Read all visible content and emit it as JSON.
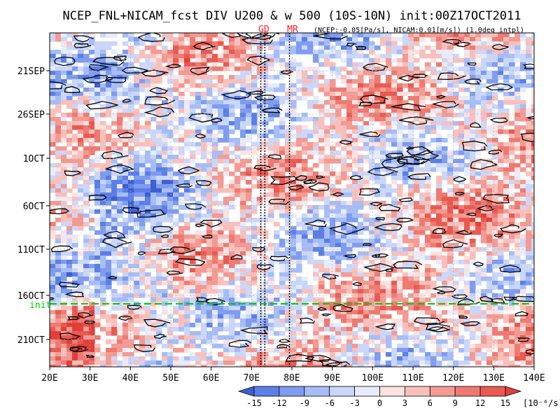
{
  "chart_data": {
    "type": "heatmap",
    "title": "NCEP_FNL+NICAM_fcst DIV U200 & w 500 (10S-10N) init:00Z17OCT2011",
    "subtitle": "(NCEP:-0.05[Pa/s], NICAM:0.01[m/s]) (1.0deg intpl)",
    "markers": [
      {
        "label": "GD",
        "color": "#ff2020"
      },
      {
        "label": "MR",
        "color": "#ff2020"
      }
    ],
    "x_ticks": [
      "20E",
      "30E",
      "40E",
      "50E",
      "60E",
      "70E",
      "80E",
      "90E",
      "100E",
      "110E",
      "120E",
      "130E",
      "140E"
    ],
    "x_range": [
      20,
      140
    ],
    "y_ticks": [
      "21SEP",
      "26SEP",
      "1OCT",
      "6OCT",
      "11OCT",
      "16OCT",
      "21OCT"
    ],
    "init_label": "init",
    "colorbar": {
      "ticks": [
        "-15",
        "-12",
        "-9",
        "-6",
        "-3",
        "0",
        "3",
        "6",
        "9",
        "12",
        "15"
      ],
      "unit": "[10⁻⁶/s]",
      "colors": [
        "#3d5fd0",
        "#5b7fe6",
        "#7f9cf0",
        "#a6bdf6",
        "#cad7f9",
        "#e6ecfb",
        "#fde2e0",
        "#f9c0bb",
        "#f39a93",
        "#ee7a72",
        "#e85a52",
        "#e04038"
      ]
    },
    "contour_legend": "w 500",
    "colors": {
      "init_line": "#00cc00",
      "marker": "#ff2020",
      "frame": "#000000"
    }
  }
}
